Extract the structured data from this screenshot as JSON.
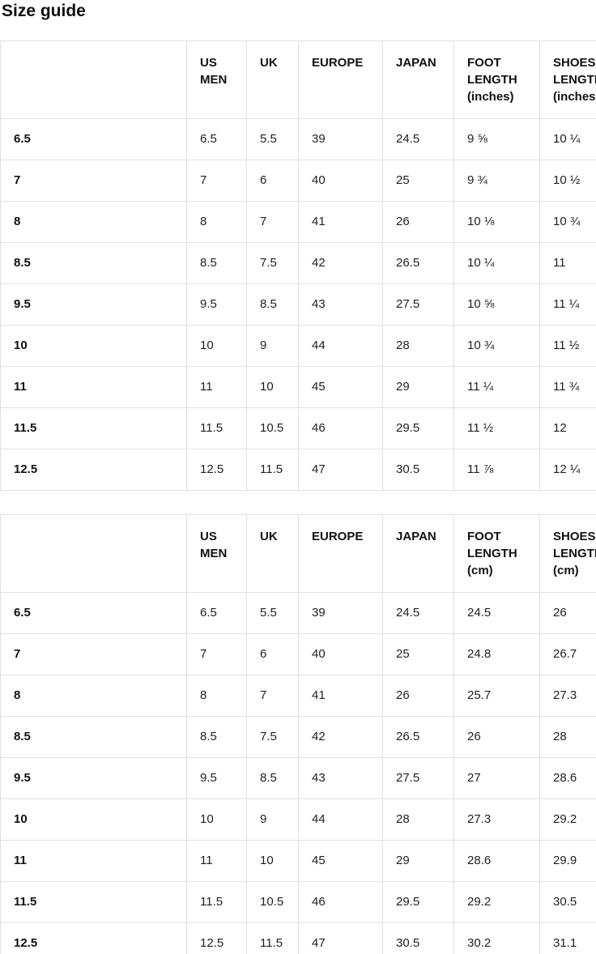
{
  "title": "Size guide",
  "colors": {
    "background": "#ffffff",
    "text": "#1a1a1a",
    "border": "#e2e2e2"
  },
  "tables": [
    {
      "name": "size-table-inches",
      "headers": [
        "",
        "US MEN",
        "UK",
        "EUROPE",
        "JAPAN",
        "FOOT LENGTH (inches)",
        "SHOES LENGTH (inches)"
      ],
      "rows": [
        [
          "6.5",
          "6.5",
          "5.5",
          "39",
          "24.5",
          "9 ⅝",
          "10 ¼"
        ],
        [
          "7",
          "7",
          "6",
          "40",
          "25",
          "9 ¾",
          "10 ½"
        ],
        [
          "8",
          "8",
          "7",
          "41",
          "26",
          "10 ⅛",
          "10 ¾"
        ],
        [
          "8.5",
          "8.5",
          "7.5",
          "42",
          "26.5",
          "10 ¼",
          "11"
        ],
        [
          "9.5",
          "9.5",
          "8.5",
          "43",
          "27.5",
          "10 ⅝",
          "11 ¼"
        ],
        [
          "10",
          "10",
          "9",
          "44",
          "28",
          "10 ¾",
          "11 ½"
        ],
        [
          "11",
          "11",
          "10",
          "45",
          "29",
          "11 ¼",
          "11 ¾"
        ],
        [
          "11.5",
          "11.5",
          "10.5",
          "46",
          "29.5",
          "11 ½",
          "12"
        ],
        [
          "12.5",
          "12.5",
          "11.5",
          "47",
          "30.5",
          "11 ⅞",
          "12 ¼"
        ]
      ]
    },
    {
      "name": "size-table-cm",
      "headers": [
        "",
        "US MEN",
        "UK",
        "EUROPE",
        "JAPAN",
        "FOOT LENGTH (cm)",
        "SHOES LENGTH (cm)"
      ],
      "rows": [
        [
          "6.5",
          "6.5",
          "5.5",
          "39",
          "24.5",
          "24.5",
          "26"
        ],
        [
          "7",
          "7",
          "6",
          "40",
          "25",
          "24.8",
          "26.7"
        ],
        [
          "8",
          "8",
          "7",
          "41",
          "26",
          "25.7",
          "27.3"
        ],
        [
          "8.5",
          "8.5",
          "7.5",
          "42",
          "26.5",
          "26",
          "28"
        ],
        [
          "9.5",
          "9.5",
          "8.5",
          "43",
          "27.5",
          "27",
          "28.6"
        ],
        [
          "10",
          "10",
          "9",
          "44",
          "28",
          "27.3",
          "29.2"
        ],
        [
          "11",
          "11",
          "10",
          "45",
          "29",
          "28.6",
          "29.9"
        ],
        [
          "11.5",
          "11.5",
          "10.5",
          "46",
          "29.5",
          "29.2",
          "30.5"
        ],
        [
          "12.5",
          "12.5",
          "11.5",
          "47",
          "30.5",
          "30.2",
          "31.1"
        ]
      ]
    }
  ]
}
